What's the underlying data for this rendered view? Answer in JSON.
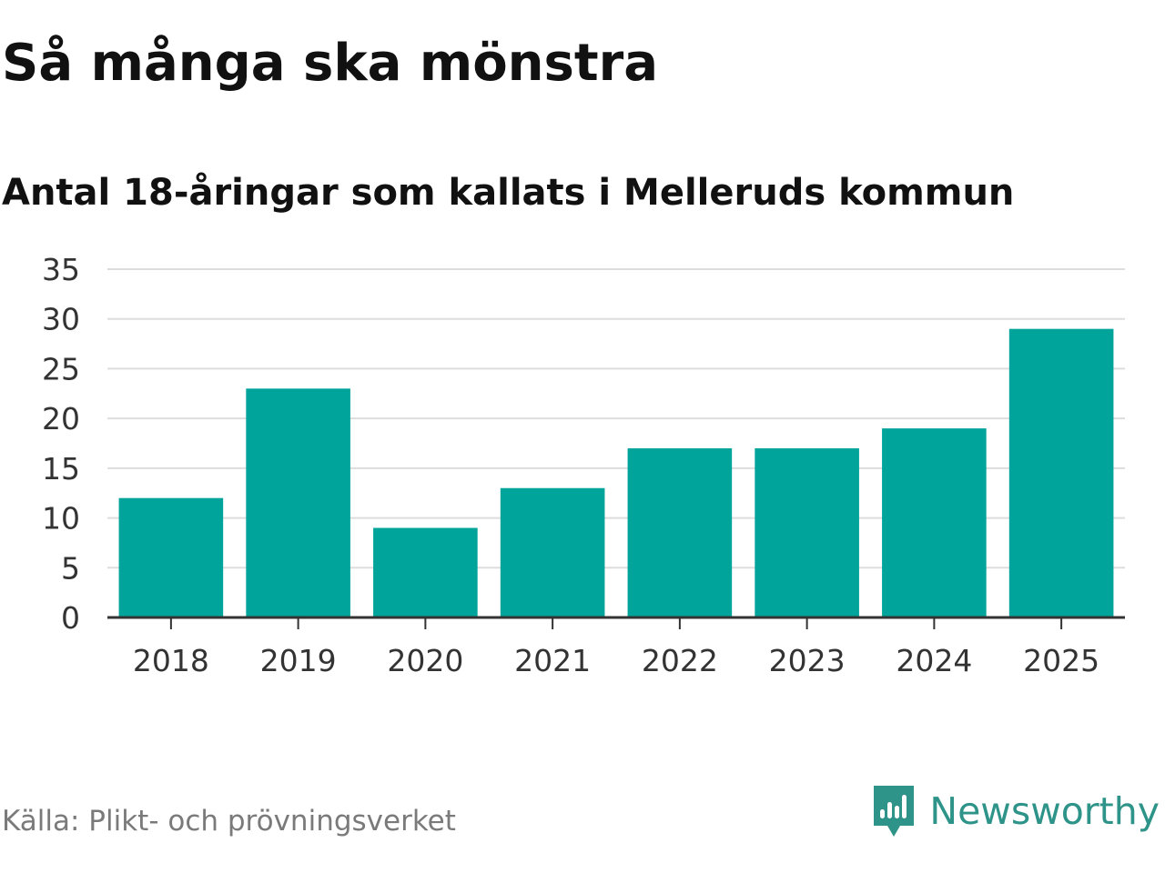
{
  "header": {
    "title": "Så många ska mönstra",
    "subtitle": "Antal 18-åringar som kallats i Melleruds kommun"
  },
  "footer": {
    "source": "Källa: Plikt- och prövningsverket",
    "brand": "Newsworthy",
    "brand_icon": "newsworthy-logo-icon"
  },
  "colors": {
    "bar": "#00a49a",
    "grid": "#dddddd",
    "axis": "#333333",
    "brand": "#2e9388"
  },
  "chart_data": {
    "type": "bar",
    "title": "Så många ska mönstra",
    "subtitle": "Antal 18-åringar som kallats i Melleruds kommun",
    "xlabel": "",
    "ylabel": "",
    "categories": [
      "2018",
      "2019",
      "2020",
      "2021",
      "2022",
      "2023",
      "2024",
      "2025"
    ],
    "values": [
      12,
      23,
      9,
      13,
      17,
      17,
      19,
      29
    ],
    "ylim": [
      0,
      35
    ],
    "yticks": [
      0,
      5,
      10,
      15,
      20,
      25,
      30,
      35
    ],
    "grid": true,
    "legend": "none"
  }
}
